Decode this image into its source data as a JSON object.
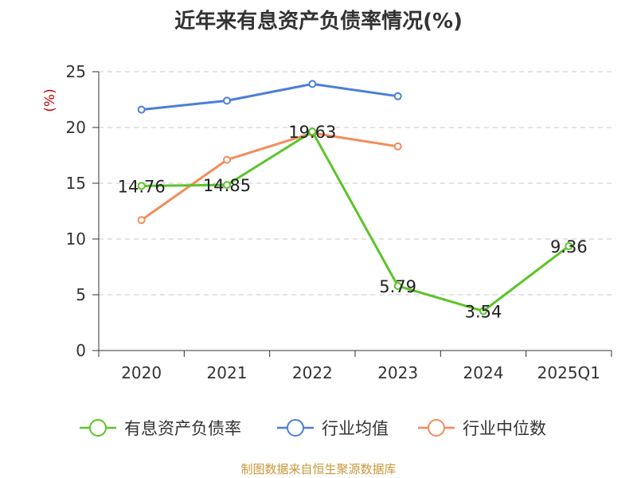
{
  "chart_data": {
    "type": "line",
    "title": "近年来有息资产负债率情况(%)",
    "ylabel": "(%)",
    "categories": [
      "2020",
      "2021",
      "2022",
      "2023",
      "2024",
      "2025Q1"
    ],
    "ylim": [
      0,
      25
    ],
    "yticks": [
      0,
      5,
      10,
      15,
      20,
      25
    ],
    "grid": true,
    "legend_position": "bottom",
    "series": [
      {
        "name": "有息资产负债率",
        "color": "#5bc42a",
        "values": [
          14.76,
          14.85,
          19.63,
          5.79,
          3.54,
          9.36
        ],
        "labels": [
          "14.76",
          "14.85",
          "19.63",
          "5.79",
          "3.54",
          "9.36"
        ]
      },
      {
        "name": "行业均值",
        "color": "#4a7fd8",
        "values": [
          21.6,
          22.4,
          23.9,
          22.8,
          null,
          null
        ]
      },
      {
        "name": "行业中位数",
        "color": "#f28c5a",
        "values": [
          11.7,
          17.1,
          19.5,
          18.3,
          null,
          null
        ]
      }
    ]
  },
  "footer": "制图数据来自恒生聚源数据库"
}
